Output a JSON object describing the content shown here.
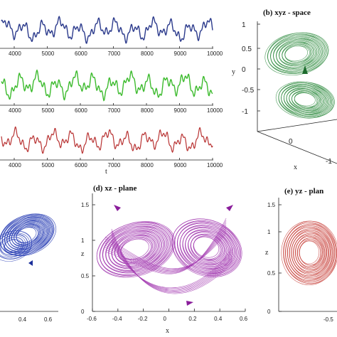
{
  "chart_data": [
    {
      "id": "ts-x",
      "type": "line",
      "x_ticks": [
        "4000",
        "5000",
        "6000",
        "7000",
        "8000",
        "9000",
        "10000"
      ],
      "series_color": "#2b3a8c"
    },
    {
      "id": "ts-y",
      "type": "line",
      "x_ticks": [
        "4000",
        "5000",
        "6000",
        "7000",
        "8000",
        "9000",
        "10000"
      ],
      "series_color": "#3dbb2e"
    },
    {
      "id": "ts-z",
      "type": "line",
      "x_ticks": [
        "4000",
        "5000",
        "6000",
        "7000",
        "8000",
        "9000",
        "10000"
      ],
      "xlabel": "t",
      "series_color": "#b83232"
    },
    {
      "id": "xyz",
      "type": "line",
      "title": "(b) xyz - space",
      "ylabel": "y",
      "xlabel": "x",
      "y_ticks": [
        "1",
        "0.5",
        "0",
        "-0.5",
        "-1"
      ],
      "x_ticks": [
        "0",
        "-1"
      ],
      "series_color": "#2e8b3e"
    },
    {
      "id": "xy",
      "type": "line",
      "x_ticks": [
        "0.4",
        "0.6"
      ],
      "xlabel": "",
      "series_color": "#2a3fb5"
    },
    {
      "id": "xz",
      "type": "line",
      "title": "(d) xz - plane",
      "xlabel": "x",
      "ylabel": "z",
      "x_ticks": [
        "-0.6",
        "-0.4",
        "-0.2",
        "0",
        "0.2",
        "0.4",
        "0.6"
      ],
      "y_ticks": [
        "1",
        "0.5",
        "0"
      ],
      "y_extra": [
        "1.5"
      ],
      "xlim": [
        -0.6,
        0.6
      ],
      "ylim": [
        0,
        1.5
      ],
      "series_color": "#a23ab0"
    },
    {
      "id": "yz",
      "type": "line",
      "title": "(e) yz - plane",
      "title_visible": "(e) yz - plan",
      "ylabel": "z",
      "x_ticks": [
        "-0.5"
      ],
      "y_ticks": [
        "1.5",
        "1",
        "0.5",
        "0"
      ],
      "series_color": "#c8423c"
    }
  ]
}
